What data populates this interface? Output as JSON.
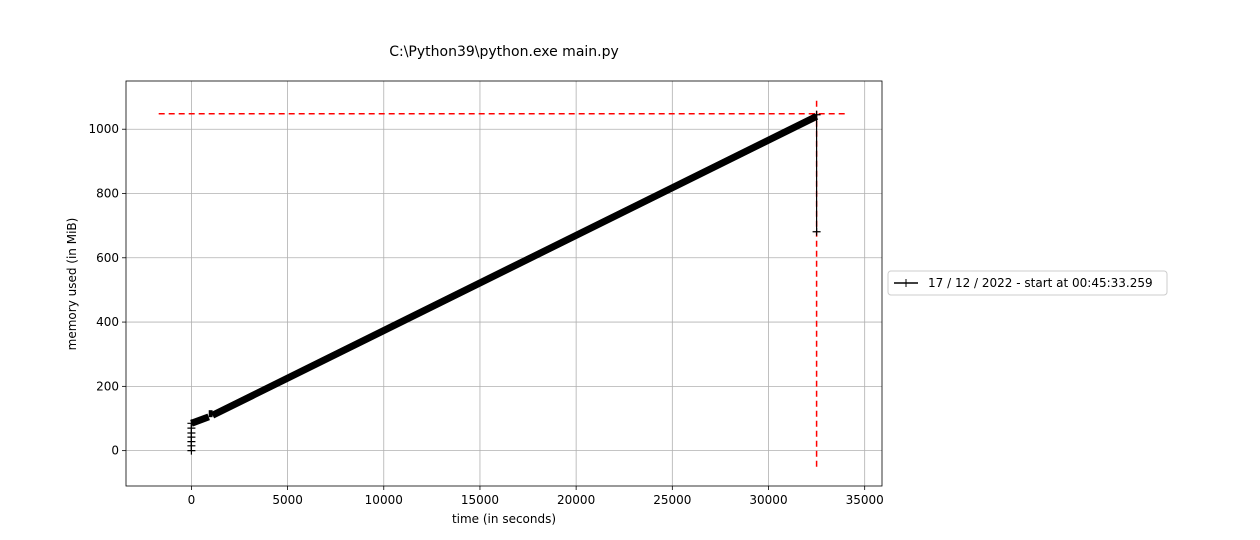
{
  "chart_data": {
    "type": "line",
    "title": "C:\\Python39\\python.exe main.py",
    "xlabel": "time (in seconds)",
    "ylabel": "memory used (in MiB)",
    "xlim": [
      -3400,
      35900
    ],
    "ylim": [
      -110,
      1150
    ],
    "xticks": [
      0,
      5000,
      10000,
      15000,
      20000,
      25000,
      30000,
      35000
    ],
    "yticks": [
      0,
      200,
      400,
      600,
      800,
      1000
    ],
    "grid": true,
    "legend_placement": "outside-right",
    "series": [
      {
        "name": "17 / 12 / 2022 - start at 00:45:33.259",
        "color": "#000000",
        "marker": "+",
        "startup_points": {
          "x": [
            0,
            0,
            0,
            0,
            0,
            0,
            0
          ],
          "y": [
            0,
            15,
            28,
            42,
            55,
            70,
            85
          ]
        },
        "segments": [
          {
            "x": [
              0,
              900
            ],
            "y": [
              85,
              105
            ]
          },
          {
            "x": [
              900,
              1100
            ],
            "y": [
              115,
              115
            ]
          },
          {
            "x": [
              1100,
              32500
            ],
            "y": [
              110,
              1040
            ]
          }
        ],
        "end_drop": {
          "x": 32500,
          "y": [
            1045,
            681
          ]
        }
      }
    ],
    "reference_lines": [
      {
        "orientation": "horizontal",
        "y": 1048,
        "x_from": -1700,
        "x_to": 34100,
        "color": "#ff0000",
        "style": "dashed"
      },
      {
        "orientation": "vertical",
        "x": 32500,
        "y_from": -50,
        "y_to": 1100,
        "color": "#ff0000",
        "style": "dashed"
      }
    ]
  }
}
